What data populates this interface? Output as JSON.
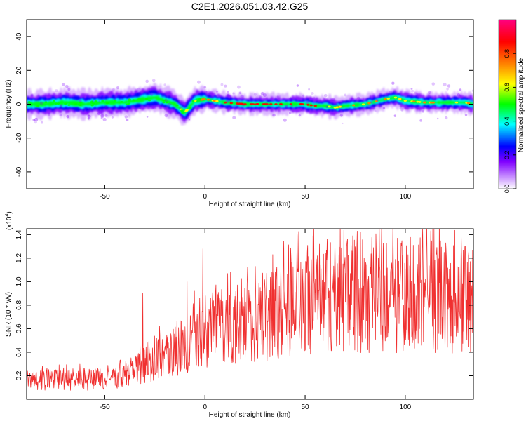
{
  "title": "C2E1.2026.051.03.42.G25",
  "chart_data": [
    {
      "type": "heatmap",
      "id": "spectrogram",
      "xlabel": "Height of straight line (km)",
      "ylabel": "Frequency (Hz)",
      "xlim": [
        -89,
        134
      ],
      "ylim": [
        -50,
        50
      ],
      "xticks": [
        -50,
        0,
        50,
        100
      ],
      "yticks": [
        -40,
        -20,
        0,
        20,
        40
      ],
      "xtick_labels": [
        "-50",
        "0",
        "50",
        "100"
      ],
      "ytick_labels": [
        "-40",
        "-20",
        "0",
        "20",
        "40"
      ],
      "ridge_frequency": {
        "x": [
          -89,
          -80,
          -70,
          -60,
          -50,
          -40,
          -30,
          -25,
          -20,
          -15,
          -12,
          -10,
          -8,
          -5,
          0,
          10,
          20,
          30,
          40,
          50,
          55,
          60,
          65,
          70,
          80,
          90,
          95,
          100,
          110,
          120,
          130,
          134
        ],
        "y": [
          0,
          0,
          1,
          0,
          1,
          1,
          3,
          4,
          2,
          0,
          -3,
          -5,
          -2,
          2,
          3,
          1,
          0,
          0,
          0,
          0,
          -1,
          -1,
          -2,
          -1,
          0,
          3,
          4,
          2,
          1,
          1,
          1,
          0
        ]
      },
      "colorbar": {
        "label": "Normalized spectral amplitude",
        "range": [
          0.0,
          1.0
        ],
        "ticks": [
          0.0,
          0.2,
          0.4,
          0.6,
          0.8
        ],
        "tick_labels": [
          "0.0",
          "0.2",
          "0.4",
          "0.6",
          "0.8"
        ],
        "colors": [
          "#ffffff",
          "#8000ff",
          "#0000ff",
          "#00ffff",
          "#00ff00",
          "#ffff00",
          "#ff8000",
          "#ff0000",
          "#ff0080"
        ]
      }
    },
    {
      "type": "line",
      "id": "snr",
      "xlabel": "Height of straight line (km)",
      "ylabel": "SNR (10 * v/v)",
      "multiplier": "(x10",
      "multiplier_exp": "4",
      "multiplier_close": ")",
      "xlim": [
        -89,
        134
      ],
      "ylim": [
        0,
        1.45
      ],
      "xticks": [
        -50,
        0,
        50,
        100
      ],
      "yticks": [
        0.2,
        0.4,
        0.6,
        0.8,
        1.0,
        1.2,
        1.4
      ],
      "xtick_labels": [
        "-50",
        "0",
        "50",
        "100"
      ],
      "ytick_labels": [
        "0.2",
        "0.4",
        "0.6",
        "0.8",
        "1.0",
        "1.2",
        "1.4"
      ],
      "color": "#f03030",
      "trend": {
        "x": [
          -89,
          -60,
          -45,
          -35,
          -25,
          -15,
          -10,
          -5,
          0,
          10,
          20,
          30,
          40,
          50,
          60,
          70,
          80,
          90,
          100,
          110,
          120,
          134
        ],
        "y": [
          0.16,
          0.17,
          0.17,
          0.25,
          0.35,
          0.38,
          0.45,
          0.55,
          0.58,
          0.62,
          0.65,
          0.7,
          0.78,
          0.85,
          0.86,
          0.88,
          0.88,
          0.87,
          0.86,
          0.86,
          0.87,
          0.86
        ]
      },
      "peaks": [
        {
          "x": -31,
          "y": 0.9
        },
        {
          "x": -9,
          "y": 1.0
        },
        {
          "x": -1,
          "y": 1.28
        },
        {
          "x": 46,
          "y": 1.4
        },
        {
          "x": 61,
          "y": 1.36
        },
        {
          "x": 76,
          "y": 1.43
        },
        {
          "x": 96,
          "y": 1.37
        },
        {
          "x": 104,
          "y": 1.31
        },
        {
          "x": 132,
          "y": 1.08
        }
      ]
    }
  ]
}
